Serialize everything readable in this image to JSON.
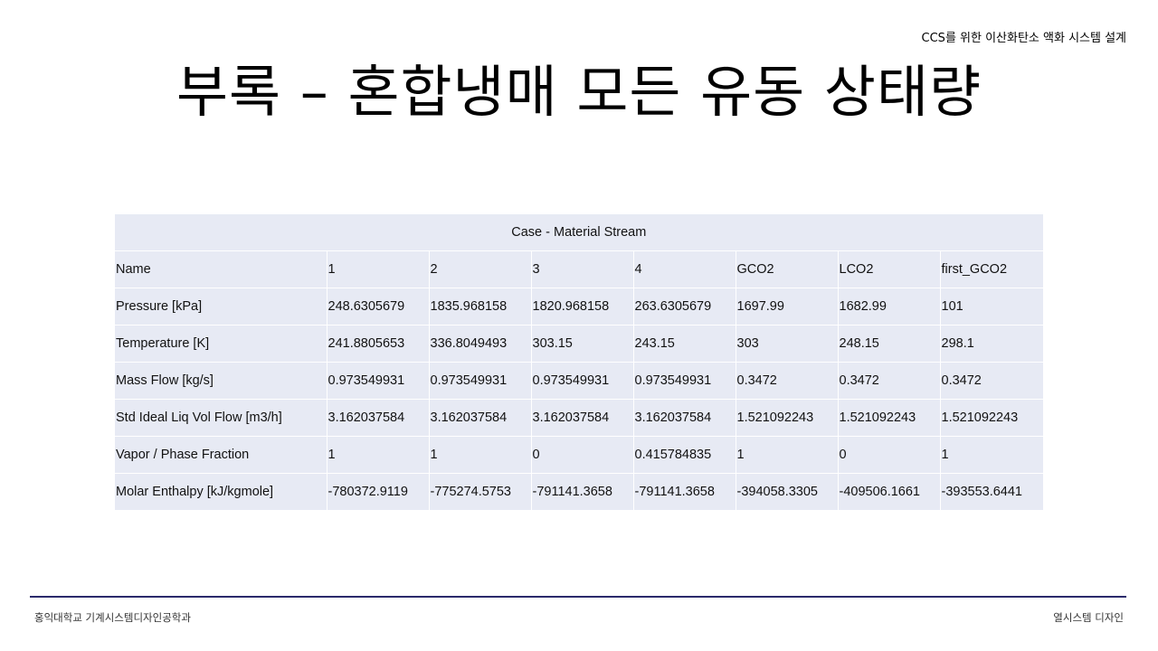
{
  "header": {
    "project_title": "CCS를 위한 이산화탄소 액화 시스템 설계"
  },
  "slide": {
    "title": "부록 – 혼합냉매 모든 유동 상태량"
  },
  "table": {
    "caption": "Case - Material Stream",
    "rows": [
      [
        "Name",
        "1",
        "2",
        "3",
        "4",
        "GCO2",
        "LCO2",
        "first_GCO2"
      ],
      [
        "Pressure [kPa]",
        "248.6305679",
        "1835.968158",
        "1820.968158",
        "263.6305679",
        "1697.99",
        "1682.99",
        "101"
      ],
      [
        "Temperature [K]",
        "241.8805653",
        "336.8049493",
        "303.15",
        "243.15",
        "303",
        "248.15",
        "298.1"
      ],
      [
        "Mass Flow [kg/s]",
        "0.973549931",
        "0.973549931",
        "0.973549931",
        "0.973549931",
        "0.3472",
        "0.3472",
        "0.3472"
      ],
      [
        "Std Ideal Liq Vol Flow [m3/h]",
        "3.162037584",
        "3.162037584",
        "3.162037584",
        "3.162037584",
        "1.521092243",
        "1.521092243",
        "1.521092243"
      ],
      [
        "Vapor / Phase Fraction",
        "1",
        "1",
        "0",
        "0.415784835",
        "1",
        "0",
        "1"
      ],
      [
        "Molar Enthalpy [kJ/kgmole]",
        "-780372.9119",
        "-775274.5753",
        "-791141.3658",
        "-791141.3658",
        "-394058.3305",
        "-409506.1661",
        "-393553.6441"
      ]
    ]
  },
  "footer": {
    "left": "홍익대학교 기계시스템디자인공학과",
    "right": "열시스템 디자인",
    "line_color": "#2b2a6b"
  },
  "colors": {
    "table_cell_bg": "#e7eaf4"
  }
}
